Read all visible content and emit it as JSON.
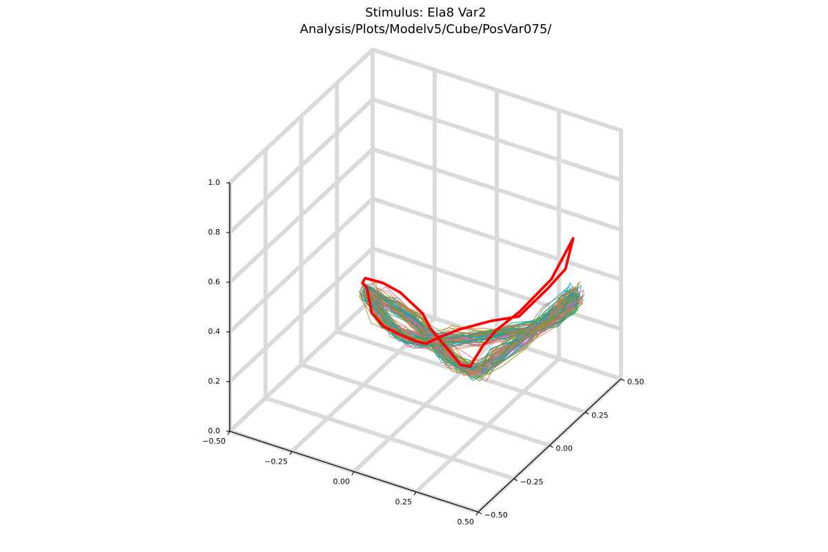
{
  "title": {
    "line1": "Stimulus: Ela8 Var2",
    "line2": "Analysis/Plots/Modelv5/Cube/PosVar075/"
  },
  "colors": {
    "stimulus": "#ff0000",
    "grid": "#dadada",
    "palette": [
      "#009afa",
      "#e36f47",
      "#3ea44e",
      "#c371d2",
      "#ac8e18",
      "#00aaae",
      "#ed5e93",
      "#c68225",
      "#00a98d",
      "#8e971e"
    ]
  },
  "chart_data": {
    "type": "line",
    "projection": "3d",
    "xlim": [
      -0.5,
      0.5
    ],
    "ylim": [
      -0.5,
      0.5
    ],
    "zlim": [
      0.0,
      1.0
    ],
    "grid": true,
    "legend": "none",
    "x_ticks": [
      "−0.50",
      "−0.25",
      "0.00",
      "0.25",
      "0.50"
    ],
    "y_ticks": [
      "−0.50",
      "−0.25",
      "0.00",
      "0.25",
      "0.50"
    ],
    "z_ticks": [
      "0.0",
      "0.2",
      "0.4",
      "0.6",
      "0.8",
      "1.0"
    ],
    "x_tick_values": [
      -0.5,
      -0.25,
      0.0,
      0.25,
      0.5
    ],
    "y_tick_values": [
      -0.5,
      -0.25,
      0.0,
      0.25,
      0.5
    ],
    "z_tick_values": [
      0.0,
      0.2,
      0.4,
      0.6,
      0.8,
      1.0
    ],
    "stimulus": {
      "x": [
        -0.35,
        -0.34,
        -0.3,
        -0.2,
        -0.1,
        0.0,
        0.05,
        0.15,
        0.2,
        0.25,
        0.28,
        0.3,
        0.33,
        0.38,
        0.45,
        0.48,
        0.42,
        0.35,
        0.25,
        0.15,
        0.05,
        0.0,
        -0.05,
        -0.08,
        -0.15,
        -0.25,
        -0.33,
        -0.36,
        -0.35
      ],
      "y": [
        0.2,
        0.15,
        0.1,
        0.05,
        0.0,
        -0.02,
        -0.05,
        -0.08,
        -0.1,
        -0.12,
        -0.15,
        -0.12,
        -0.08,
        0.0,
        0.1,
        0.2,
        0.25,
        0.25,
        0.22,
        0.2,
        0.15,
        0.1,
        0.1,
        0.15,
        0.2,
        0.25,
        0.28,
        0.25,
        0.2
      ],
      "z": [
        0.25,
        0.3,
        0.36,
        0.4,
        0.42,
        0.38,
        0.35,
        0.3,
        0.28,
        0.3,
        0.35,
        0.4,
        0.45,
        0.5,
        0.6,
        0.72,
        0.55,
        0.45,
        0.32,
        0.28,
        0.24,
        0.22,
        0.18,
        0.14,
        0.1,
        0.07,
        0.06,
        0.12,
        0.25
      ]
    },
    "samples": {
      "count": 60,
      "path_x": [
        -0.36,
        -0.32,
        -0.25,
        -0.15,
        -0.05,
        0.05,
        0.12,
        0.2,
        0.28,
        0.32,
        0.38,
        0.44,
        0.48,
        0.45,
        0.38,
        0.3,
        0.22,
        0.12,
        0.02,
        -0.06,
        -0.15,
        -0.24,
        -0.32,
        -0.36
      ],
      "path_y": [
        0.22,
        0.16,
        0.1,
        0.05,
        0.02,
        -0.03,
        -0.06,
        -0.08,
        -0.1,
        -0.06,
        0.02,
        0.1,
        0.2,
        0.26,
        0.26,
        0.24,
        0.22,
        0.18,
        0.14,
        0.12,
        0.16,
        0.22,
        0.27,
        0.22
      ],
      "path_z": [
        0.22,
        0.26,
        0.3,
        0.32,
        0.31,
        0.29,
        0.27,
        0.26,
        0.28,
        0.33,
        0.38,
        0.44,
        0.5,
        0.42,
        0.34,
        0.28,
        0.25,
        0.22,
        0.2,
        0.17,
        0.13,
        0.1,
        0.09,
        0.22
      ],
      "jitter_xy": 0.03,
      "jitter_z": 0.035
    }
  }
}
